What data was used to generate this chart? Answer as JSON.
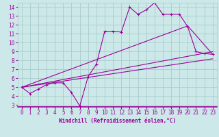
{
  "xlabel": "Windchill (Refroidissement éolien,°C)",
  "ylabel": "",
  "background_color": "#cce8e8",
  "grid_color": "#aacccc",
  "line_color": "#990099",
  "xlim": [
    -0.5,
    23.5
  ],
  "ylim": [
    2.8,
    14.5
  ],
  "yticks": [
    3,
    4,
    5,
    6,
    7,
    8,
    9,
    10,
    11,
    12,
    13,
    14
  ],
  "xticks": [
    0,
    1,
    2,
    3,
    4,
    5,
    6,
    7,
    8,
    9,
    10,
    11,
    12,
    13,
    14,
    15,
    16,
    17,
    18,
    19,
    20,
    21,
    22,
    23
  ],
  "line1_x": [
    0,
    1,
    2,
    3,
    4,
    5,
    6,
    7,
    8,
    9,
    10,
    11,
    12,
    13,
    14,
    15,
    16,
    17,
    18,
    19,
    20,
    21,
    22,
    23
  ],
  "line1_y": [
    5.0,
    4.3,
    4.8,
    5.3,
    5.5,
    5.5,
    4.4,
    2.9,
    6.2,
    7.6,
    11.3,
    11.3,
    11.2,
    14.0,
    13.2,
    13.7,
    14.5,
    13.2,
    13.2,
    13.2,
    11.8,
    9.0,
    8.8,
    8.7
  ],
  "line2_x": [
    0,
    23
  ],
  "line2_y": [
    5.0,
    9.0
  ],
  "line3_x": [
    0,
    20,
    23
  ],
  "line3_y": [
    5.0,
    11.9,
    8.7
  ],
  "line4_x": [
    0,
    23
  ],
  "line4_y": [
    5.0,
    8.2
  ]
}
